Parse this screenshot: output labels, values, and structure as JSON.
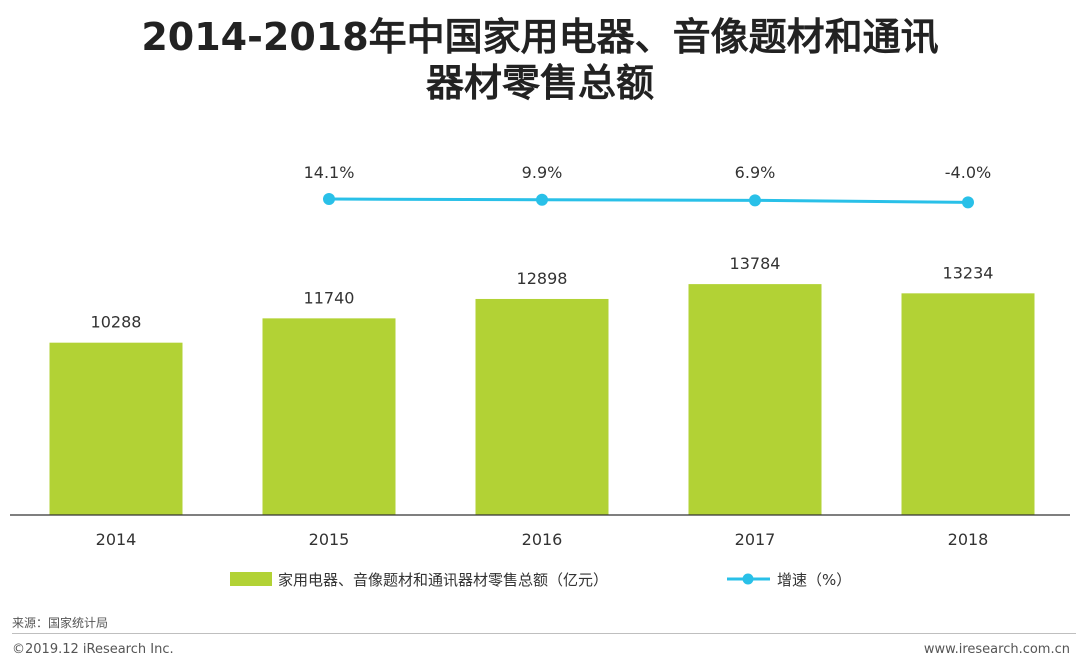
{
  "title_line1": "2014-2018年中国家用电器、音像题材和通讯",
  "title_line2": "器材零售总额",
  "chart_data": {
    "type": "bar",
    "categories": [
      "2014",
      "2015",
      "2016",
      "2017",
      "2018"
    ],
    "series": [
      {
        "name": "家用电器、音像题材和通讯器材零售总额（亿元）",
        "type": "bar",
        "values": [
          10288,
          11740,
          12898,
          13784,
          13234
        ],
        "labels": [
          "10288",
          "11740",
          "12898",
          "13784",
          "13234"
        ],
        "color": "#b2d235"
      },
      {
        "name": "增速（%）",
        "type": "line",
        "values": [
          null,
          14.1,
          9.9,
          6.9,
          -4.0
        ],
        "labels": [
          "",
          "14.1%",
          "9.9%",
          "6.9%",
          "-4.0%"
        ],
        "color": "#29c0e8"
      }
    ],
    "ylim": [
      0,
      15000
    ],
    "xlabel": "",
    "ylabel": ""
  },
  "source": "来源：国家统计局",
  "copyright": "©2019.12 iResearch Inc.",
  "website": "www.iresearch.com.cn"
}
